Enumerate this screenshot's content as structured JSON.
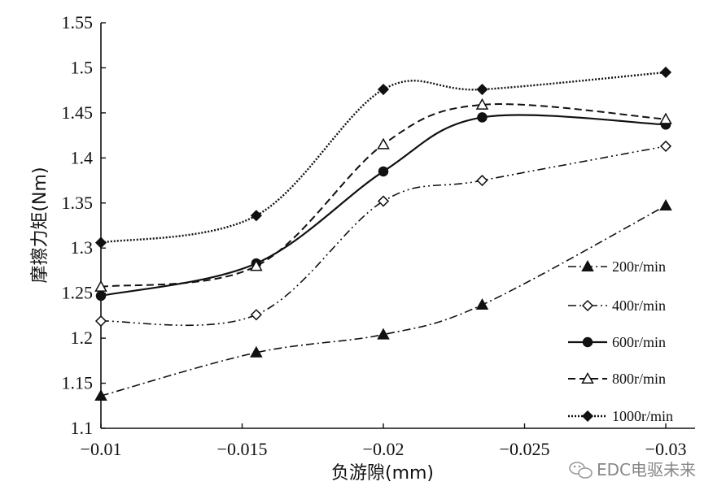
{
  "chart_data": {
    "type": "line",
    "title": "",
    "xlabel": "负游隙(mm)",
    "ylabel": "摩擦力矩(Nm)",
    "x": [
      -0.01,
      -0.0155,
      -0.02,
      -0.0235,
      -0.03
    ],
    "xlim": [
      -0.01,
      -0.03
    ],
    "ylim": [
      1.1,
      1.55
    ],
    "xticks": [
      "−0.01",
      "−0.015",
      "−0.02",
      "−0.025",
      "−0.03"
    ],
    "yticks": [
      "1.1",
      "1.15",
      "1.2",
      "1.25",
      "1.3",
      "1.35",
      "1.4",
      "1.45",
      "1.5",
      "1.55"
    ],
    "grid": false,
    "legend_position": "right",
    "series": [
      {
        "name": "200r/min",
        "values": [
          1.136,
          1.184,
          1.204,
          1.237,
          1.347
        ],
        "marker": "filled-triangle",
        "dash": "dashdot",
        "width": 1.6
      },
      {
        "name": "400r/min",
        "values": [
          1.219,
          1.226,
          1.352,
          1.375,
          1.413
        ],
        "marker": "open-diamond",
        "dash": "dashdotdot",
        "width": 1.6
      },
      {
        "name": "600r/min",
        "values": [
          1.247,
          1.283,
          1.385,
          1.445,
          1.437
        ],
        "marker": "filled-circle",
        "dash": "solid",
        "width": 2.2
      },
      {
        "name": "800r/min",
        "values": [
          1.257,
          1.28,
          1.415,
          1.459,
          1.443
        ],
        "marker": "open-triangle",
        "dash": "dashed",
        "width": 2.0
      },
      {
        "name": "1000r/min",
        "values": [
          1.306,
          1.336,
          1.476,
          1.476,
          1.495
        ],
        "marker": "filled-diamond",
        "dash": "dotted",
        "width": 2.4
      }
    ]
  },
  "watermark": {
    "text": "EDC电驱未来",
    "icon": "wechat-icon"
  }
}
